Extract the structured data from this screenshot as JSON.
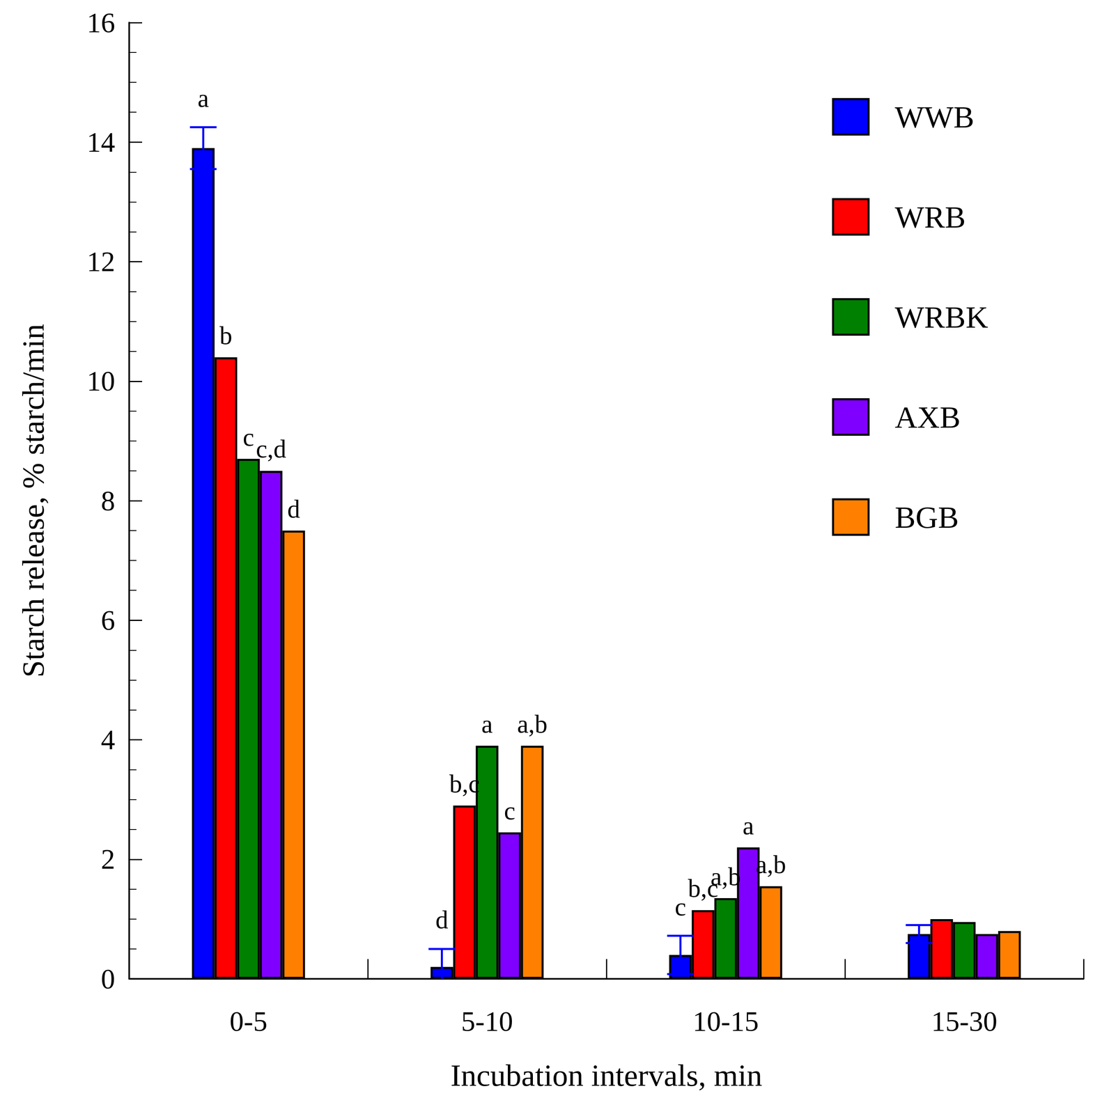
{
  "chart_data": {
    "type": "bar",
    "x_label": "Incubation intervals, min",
    "y_label": "Starch release, % starch/min",
    "categories": [
      "0-5",
      "5-10",
      "10-15",
      "15-30"
    ],
    "series": [
      {
        "name": "WWB",
        "color": "#0000ff",
        "values": [
          13.9,
          0.2,
          0.4,
          0.75
        ],
        "errors": [
          0.35,
          0.3,
          0.32,
          0.15
        ],
        "annotations": [
          "a",
          "d",
          "c",
          null
        ]
      },
      {
        "name": "WRB",
        "color": "#ff0000",
        "values": [
          10.4,
          2.9,
          1.15,
          1.0
        ],
        "annotations": [
          "b",
          "b,c",
          "b,c",
          null
        ]
      },
      {
        "name": "WRBK",
        "color": "#008000",
        "values": [
          8.7,
          3.9,
          1.35,
          0.95
        ],
        "annotations": [
          "c",
          "a",
          "a,b",
          null
        ]
      },
      {
        "name": "AXB",
        "color": "#8000ff",
        "values": [
          8.5,
          2.45,
          2.2,
          0.75
        ],
        "annotations": [
          "c,d",
          "c",
          "a",
          null
        ]
      },
      {
        "name": "BGB",
        "color": "#ff8000",
        "values": [
          7.5,
          3.9,
          1.55,
          0.8
        ],
        "annotations": [
          "d",
          "a,b",
          "a,b",
          null
        ]
      }
    ],
    "ylim": [
      0,
      16
    ],
    "yticks": [
      0,
      2,
      4,
      6,
      8,
      10,
      12,
      14,
      16
    ],
    "grid": false,
    "legend": "top-right"
  }
}
